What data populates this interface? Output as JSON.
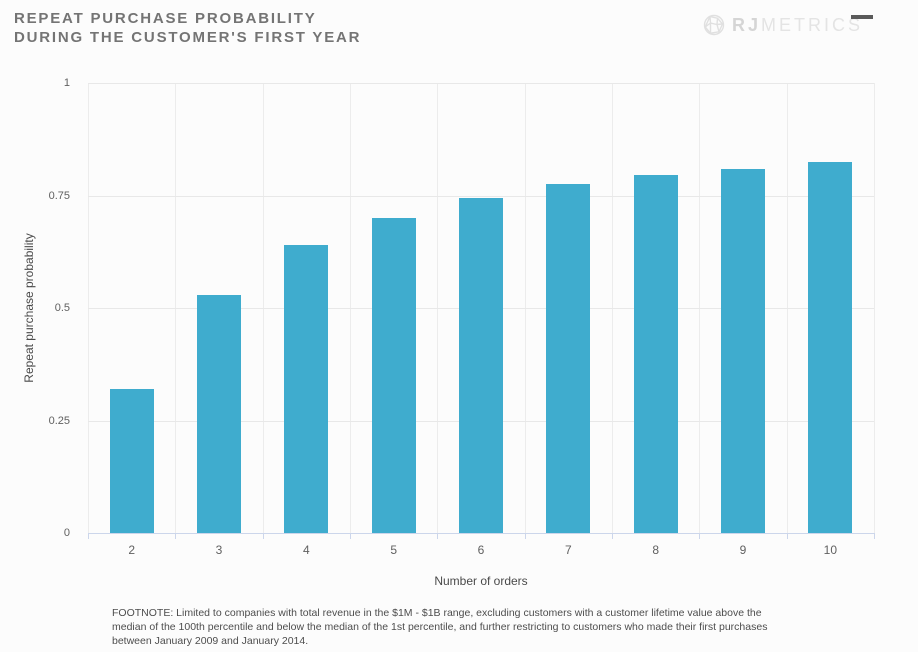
{
  "header": {
    "title_line1": "REPEAT PURCHASE PROBABILITY",
    "title_line2": "DURING THE CUSTOMER'S FIRST YEAR",
    "logo": {
      "icon": "globe-icon",
      "brand_prefix": "RJ",
      "brand_suffix": "METRICS"
    },
    "menu_icon": "hamburger-icon"
  },
  "chart_data": {
    "type": "bar",
    "title": "REPEAT PURCHASE PROBABILITY DURING THE CUSTOMER'S FIRST YEAR",
    "categories": [
      "2",
      "3",
      "4",
      "5",
      "6",
      "7",
      "8",
      "9",
      "10"
    ],
    "values": [
      0.32,
      0.53,
      0.64,
      0.7,
      0.745,
      0.775,
      0.795,
      0.81,
      0.825
    ],
    "xlabel": "Number of orders",
    "ylabel": "Repeat purchase probability",
    "ylim": [
      0,
      1
    ],
    "yticks": [
      0,
      0.25,
      0.5,
      0.75,
      1
    ],
    "grid": true,
    "legend": false,
    "bar_color": "#3FACCE"
  },
  "footnote": {
    "text": "FOOTNOTE: Limited to companies with total revenue in the $1M - $1B range, excluding customers with a customer lifetime value above the median of the 100th percentile and below the median of the 1st percentile, and further restricting to customers who made their first purchases between January 2009 and January 2014."
  }
}
